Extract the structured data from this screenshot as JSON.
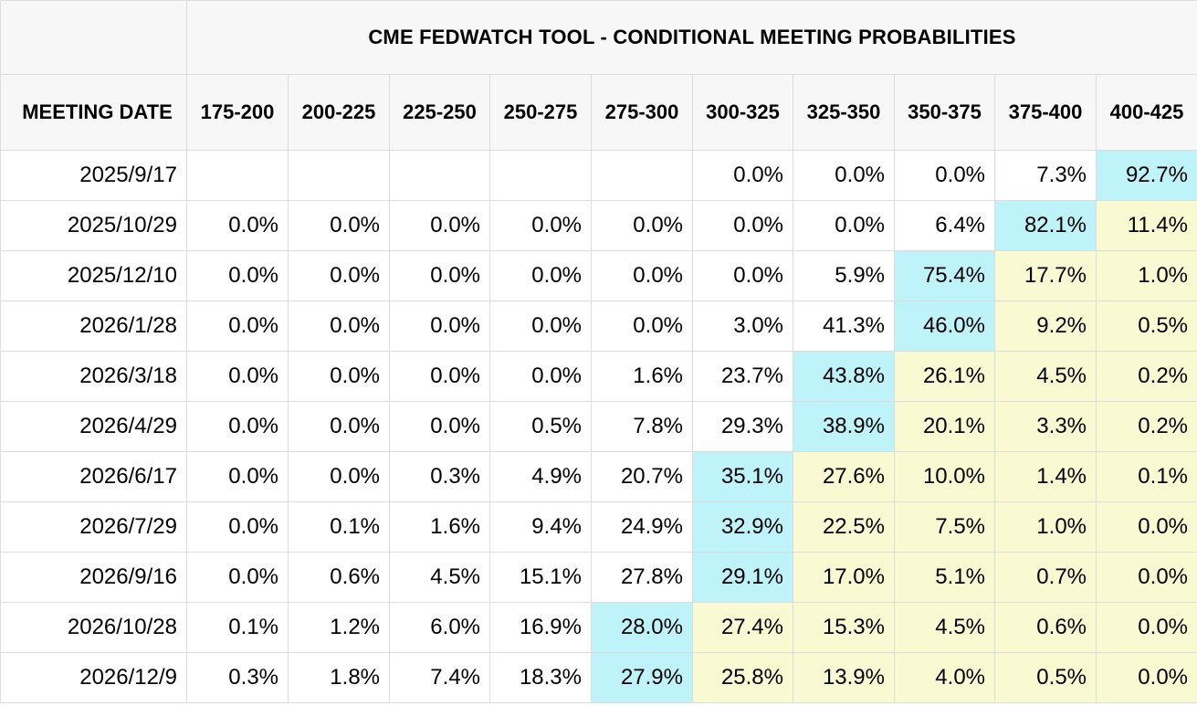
{
  "title": "CME FEDWATCH TOOL - CONDITIONAL MEETING PROBABILITIES",
  "colors": {
    "highlight": "#bff3fa",
    "above": "#fafad2",
    "header_bg": "#f7f7f7",
    "grid": "#dcdcdc"
  },
  "chart_data": {
    "type": "table",
    "title": "CME FEDWATCH TOOL - CONDITIONAL MEETING PROBABILITIES",
    "row_header": "MEETING DATE",
    "columns": [
      "175-200",
      "200-225",
      "225-250",
      "250-275",
      "275-300",
      "300-325",
      "325-350",
      "350-375",
      "375-400",
      "400-425"
    ],
    "rows": [
      {
        "date": "2025/9/17",
        "values": [
          "",
          "",
          "",
          "",
          "",
          "0.0%",
          "0.0%",
          "0.0%",
          "7.3%",
          "92.7%"
        ],
        "highlight": 9
      },
      {
        "date": "2025/10/29",
        "values": [
          "0.0%",
          "0.0%",
          "0.0%",
          "0.0%",
          "0.0%",
          "0.0%",
          "0.0%",
          "6.4%",
          "82.1%",
          "11.4%"
        ],
        "highlight": 8
      },
      {
        "date": "2025/12/10",
        "values": [
          "0.0%",
          "0.0%",
          "0.0%",
          "0.0%",
          "0.0%",
          "0.0%",
          "5.9%",
          "75.4%",
          "17.7%",
          "1.0%"
        ],
        "highlight": 7
      },
      {
        "date": "2026/1/28",
        "values": [
          "0.0%",
          "0.0%",
          "0.0%",
          "0.0%",
          "0.0%",
          "3.0%",
          "41.3%",
          "46.0%",
          "9.2%",
          "0.5%"
        ],
        "highlight": 7
      },
      {
        "date": "2026/3/18",
        "values": [
          "0.0%",
          "0.0%",
          "0.0%",
          "0.0%",
          "1.6%",
          "23.7%",
          "43.8%",
          "26.1%",
          "4.5%",
          "0.2%"
        ],
        "highlight": 6
      },
      {
        "date": "2026/4/29",
        "values": [
          "0.0%",
          "0.0%",
          "0.0%",
          "0.5%",
          "7.8%",
          "29.3%",
          "38.9%",
          "20.1%",
          "3.3%",
          "0.2%"
        ],
        "highlight": 6
      },
      {
        "date": "2026/6/17",
        "values": [
          "0.0%",
          "0.0%",
          "0.3%",
          "4.9%",
          "20.7%",
          "35.1%",
          "27.6%",
          "10.0%",
          "1.4%",
          "0.1%"
        ],
        "highlight": 5
      },
      {
        "date": "2026/7/29",
        "values": [
          "0.0%",
          "0.1%",
          "1.6%",
          "9.4%",
          "24.9%",
          "32.9%",
          "22.5%",
          "7.5%",
          "1.0%",
          "0.0%"
        ],
        "highlight": 5
      },
      {
        "date": "2026/9/16",
        "values": [
          "0.0%",
          "0.6%",
          "4.5%",
          "15.1%",
          "27.8%",
          "29.1%",
          "17.0%",
          "5.1%",
          "0.7%",
          "0.0%"
        ],
        "highlight": 5
      },
      {
        "date": "2026/10/28",
        "values": [
          "0.1%",
          "1.2%",
          "6.0%",
          "16.9%",
          "28.0%",
          "27.4%",
          "15.3%",
          "4.5%",
          "0.6%",
          "0.0%"
        ],
        "highlight": 4
      },
      {
        "date": "2026/12/9",
        "values": [
          "0.3%",
          "1.8%",
          "7.4%",
          "18.3%",
          "27.9%",
          "25.8%",
          "13.9%",
          "4.0%",
          "0.5%",
          "0.0%"
        ],
        "highlight": 4
      }
    ]
  }
}
